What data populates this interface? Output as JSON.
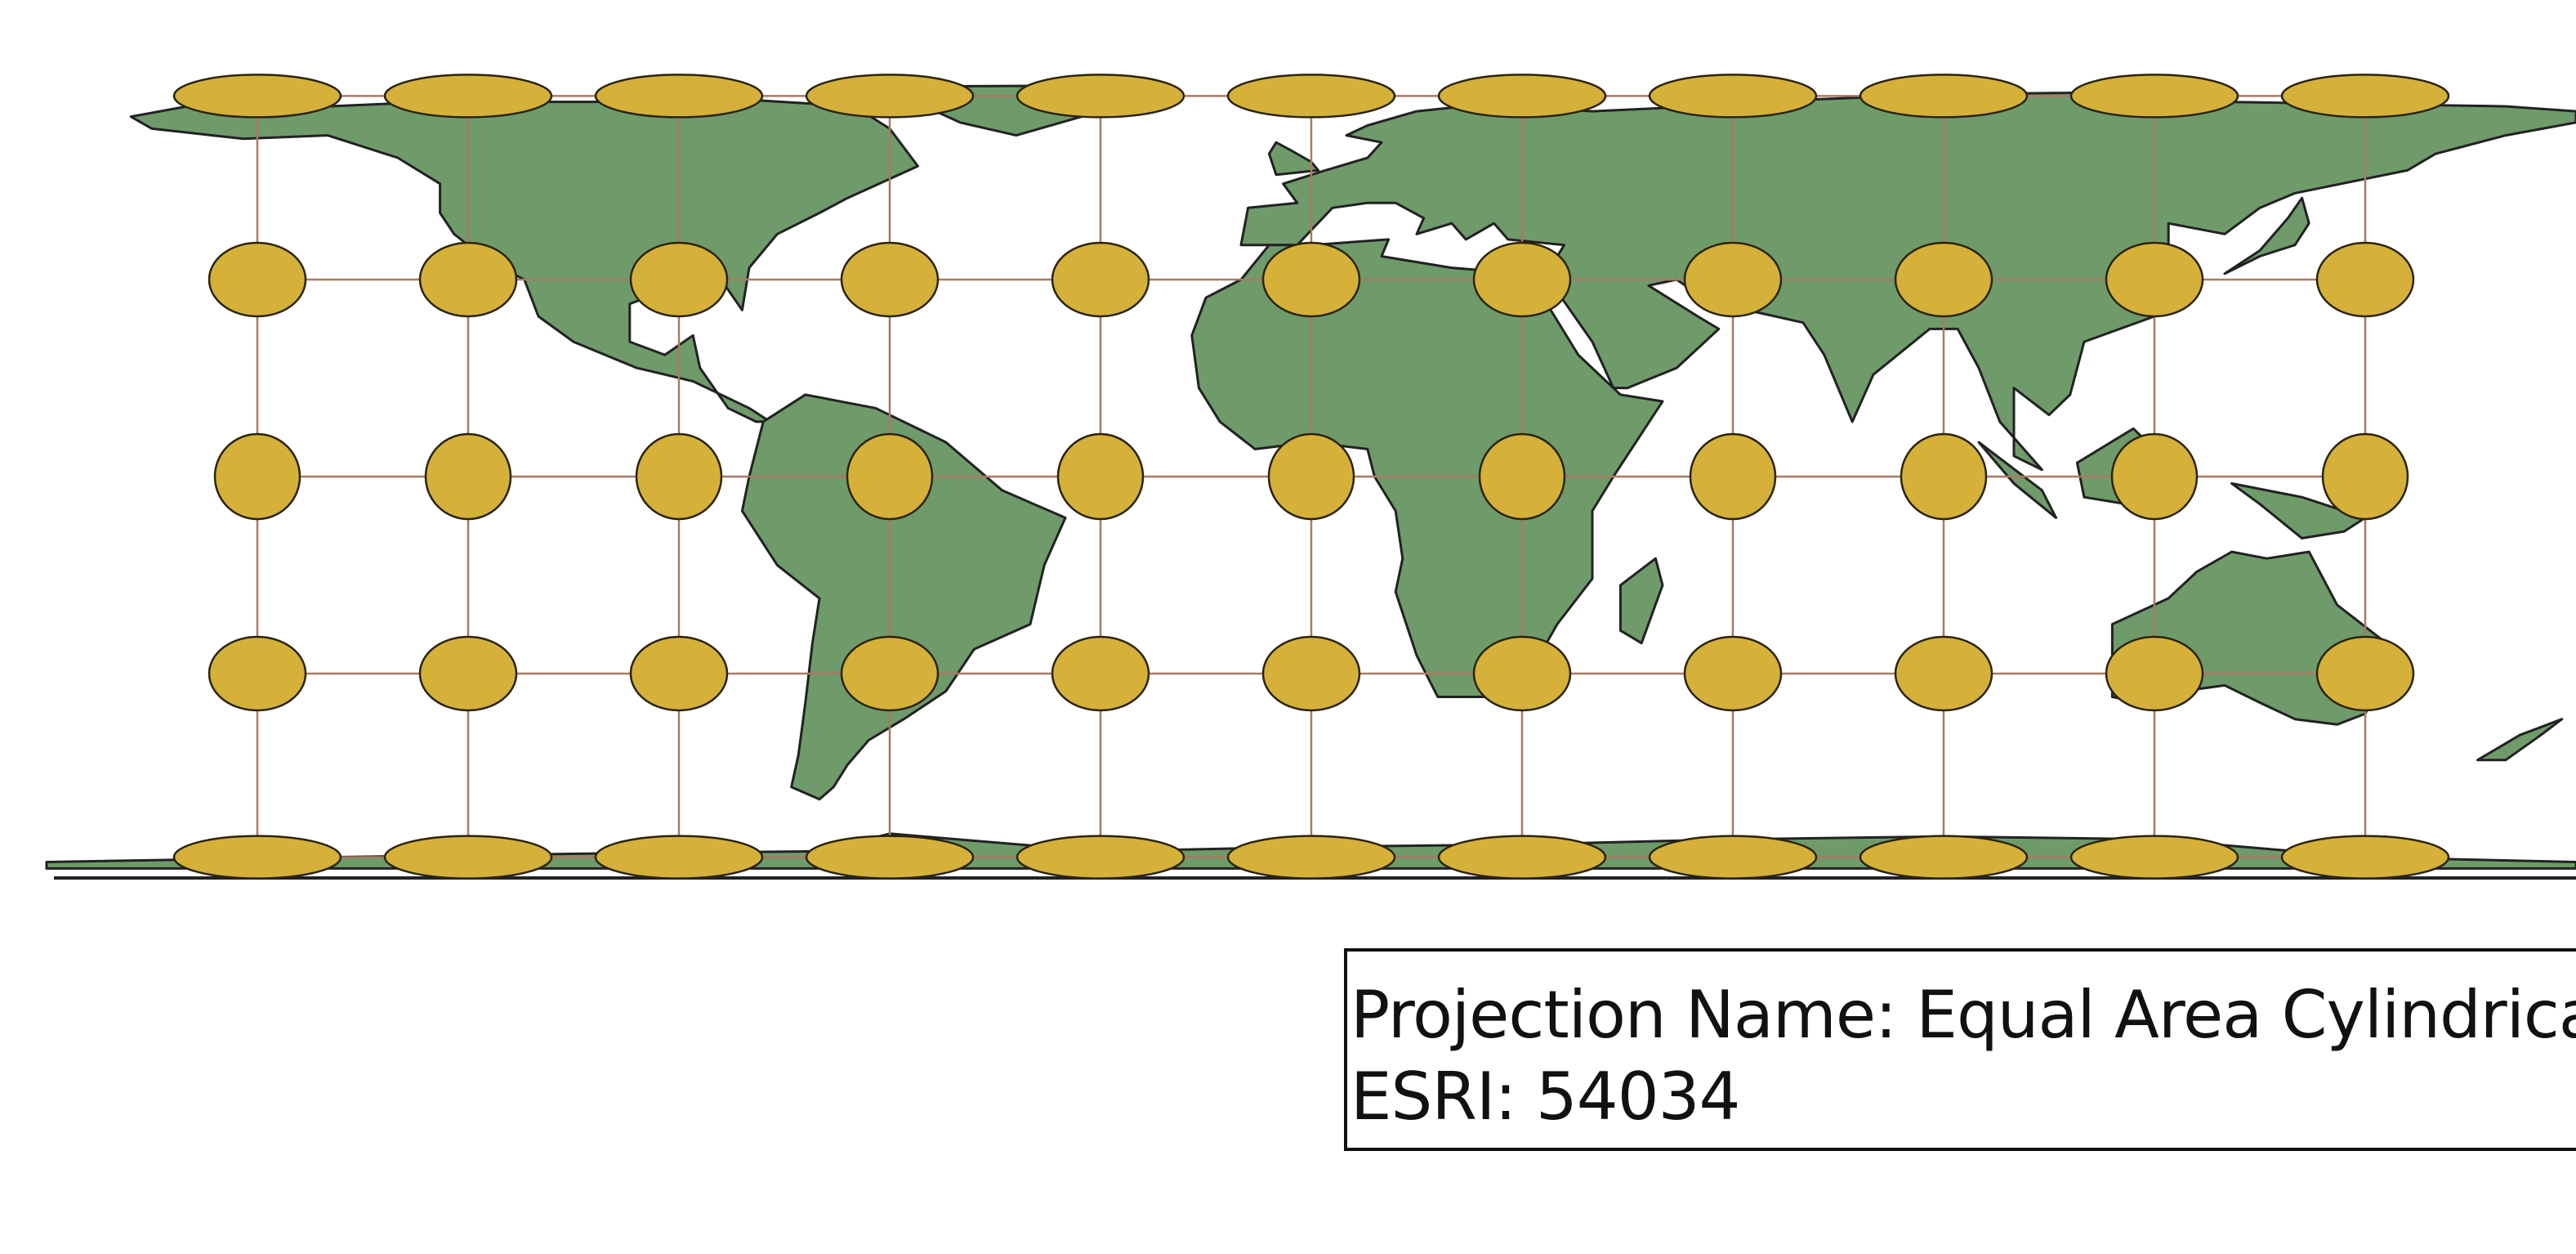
{
  "map": {
    "projection_label": "Projection Name: Equal Area Cylindrical",
    "code_label": "ESRI: 54034",
    "colors": {
      "land": "#6f9b6b",
      "land_outline": "#222222",
      "ellipse_fill": "#d5b13a",
      "ellipse_outline": "#2a2410",
      "graticule": "#a87a62",
      "background": "#ffffff"
    },
    "graticule": {
      "longitudes_deg": [
        -150,
        -120,
        -90,
        -60,
        -30,
        0,
        30,
        60,
        90,
        120,
        150
      ],
      "latitudes_deg": [
        -60,
        -30,
        0,
        30,
        60
      ]
    },
    "indicatrix": {
      "description_rows_lat": [
        60,
        30,
        0,
        -30,
        -60
      ],
      "shape": "Tissot ellipses"
    }
  }
}
